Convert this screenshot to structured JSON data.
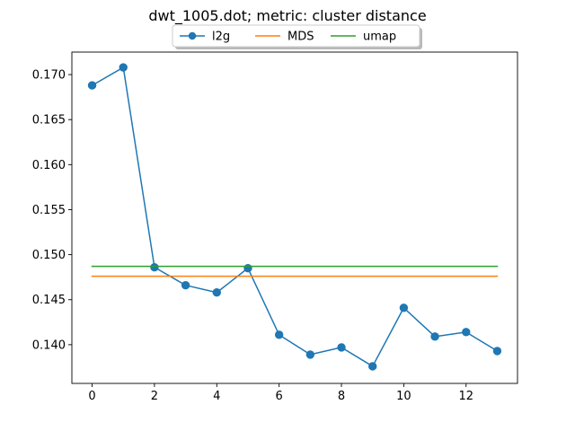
{
  "chart_data": {
    "type": "line",
    "title": "dwt_1005.dot; metric: cluster distance",
    "xlabel": "",
    "ylabel": "",
    "xlim": [
      -0.65,
      13.65
    ],
    "ylim": [
      0.1357,
      0.1725
    ],
    "x_ticks": [
      0,
      2,
      4,
      6,
      8,
      10,
      12
    ],
    "y_ticks": [
      0.14,
      0.145,
      0.15,
      0.155,
      0.16,
      0.165,
      0.17
    ],
    "y_tick_labels": [
      "0.140",
      "0.145",
      "0.150",
      "0.155",
      "0.160",
      "0.165",
      "0.170"
    ],
    "legend_position": "top-center, above plot, 3 columns, shadowed",
    "grid": false,
    "series": [
      {
        "name": "l2g",
        "color": "#1f77b4",
        "marker": "circle",
        "x": [
          0,
          1,
          2,
          3,
          4,
          5,
          6,
          7,
          8,
          9,
          10,
          11,
          12,
          13
        ],
        "values": [
          0.1688,
          0.1708,
          0.1486,
          0.1466,
          0.1458,
          0.1485,
          0.1411,
          0.1389,
          0.1397,
          0.1376,
          0.1441,
          0.1409,
          0.1414,
          0.1393
        ]
      },
      {
        "name": "MDS",
        "color": "#ff7f0e",
        "marker": "none",
        "x": [
          0,
          13
        ],
        "values": [
          0.1476,
          0.1476
        ]
      },
      {
        "name": "umap",
        "color": "#2ca02c",
        "marker": "none",
        "x": [
          0,
          13
        ],
        "values": [
          0.1487,
          0.1487
        ]
      }
    ]
  }
}
